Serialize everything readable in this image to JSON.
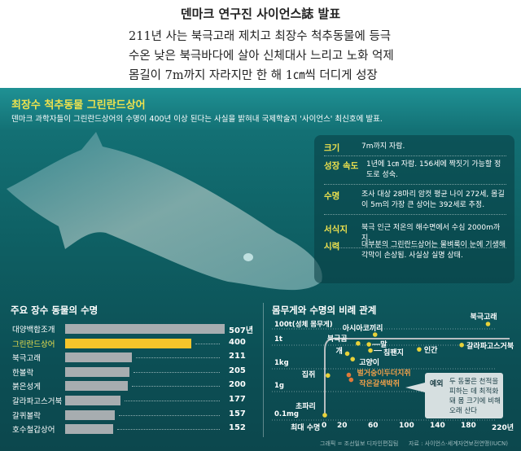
{
  "header": {
    "title": "덴마크 연구진 사이언스誌 발표",
    "subtitles": [
      "211년 사는 북극고래 제치고 최장수 척추동물에 등극",
      "수온 낮은 북극바다에 살아 신체대사 느리고 노화 억제",
      "몸길이 7m까지 자라지만 한 해 1㎝씩 더디게 성장"
    ]
  },
  "panel": {
    "title": "최장수 척추동물 그린란드상어",
    "description": "덴마크 과학자들이 그린란드상어의 수명이 400년 이상 된다는 사실을 밝혀내 국제학술지 '사이언스' 최신호에 발표.",
    "info": [
      {
        "label": "크기",
        "text": "7m까지 자람."
      },
      {
        "label": "성장 속도",
        "text": "1년에 1㎝ 자람. 156세에 짝짓기 가능할 정도로 성숙."
      },
      {
        "label": "수명",
        "text": "조사 대상 28마리 암컷 평균 나이 272세, 몸길이 5m의 가장 큰 상어는 392세로 추정."
      },
      {
        "label": "서식지",
        "text": "북극 인근 저온의 해수면에서 수심 2000m까지."
      },
      {
        "label": "시력",
        "text": "대부분의 그린란드상어는 물벼룩이 눈에 기생해  각막이 손상됨. 사실상 실명 상태."
      }
    ]
  },
  "colors": {
    "highlight": "#f5c52b",
    "bar": "#a7adb0",
    "title_yellow": "#eee24e",
    "dot_yellow": "#e8d23a",
    "dot_orange": "#e07a3a",
    "panel": "#0e5e62"
  },
  "chart_data": [
    {
      "type": "bar",
      "orientation": "horizontal",
      "title": "주요 장수 동물의 수명",
      "categories": [
        "대양백합조개",
        "그린란드상어",
        "북극고래",
        "한볼락",
        "붉은성게",
        "갈라파고스거북",
        "갈퀴볼락",
        "호수철갑상어"
      ],
      "values": [
        507,
        400,
        211,
        205,
        200,
        177,
        157,
        152
      ],
      "value_labels": [
        "507년",
        "400",
        "211",
        "205",
        "200",
        "177",
        "157",
        "152"
      ],
      "highlight": "그린란드상어"
    },
    {
      "type": "scatter",
      "title": "몸무게와 수명의 비례 관계",
      "ylabel": "100t(성체 몸무게)",
      "xlabel": "최대 수명",
      "y_scale": "log",
      "y_ticks": [
        "100t",
        "1t",
        "1kg",
        "1g",
        "0.1mg"
      ],
      "x_ticks": [
        "0",
        "20",
        "60",
        "100",
        "140",
        "180",
        "220년"
      ],
      "x_tick_values": [
        0,
        20,
        60,
        100,
        140,
        180,
        220
      ],
      "points": [
        {
          "name": "북극고래",
          "x": 211,
          "y": "100t",
          "color": "yellow"
        },
        {
          "name": "아시아코끼리",
          "x": 65,
          "y": "5t",
          "color": "yellow"
        },
        {
          "name": "북극곰",
          "x": 43,
          "y": "400kg",
          "color": "yellow"
        },
        {
          "name": "말",
          "x": 57,
          "y": "300kg",
          "color": "yellow"
        },
        {
          "name": "갈라파고스거북",
          "x": 177,
          "y": "250kg",
          "color": "yellow"
        },
        {
          "name": "인간",
          "x": 122,
          "y": "70kg",
          "color": "yellow"
        },
        {
          "name": "침팬지",
          "x": 59,
          "y": "50kg",
          "color": "yellow"
        },
        {
          "name": "개",
          "x": 29,
          "y": "20kg",
          "color": "yellow"
        },
        {
          "name": "고양이",
          "x": 36,
          "y": "4kg",
          "color": "yellow"
        },
        {
          "name": "집쥐",
          "x": 4,
          "y": "30g",
          "color": "yellow"
        },
        {
          "name": "벌거숭이두더지쥐",
          "x": 31,
          "y": "35g",
          "color": "orange"
        },
        {
          "name": "작은갈색박쥐",
          "x": 34,
          "y": "8g",
          "color": "orange"
        },
        {
          "name": "초파리",
          "x": 0,
          "y": "0.1mg",
          "color": "yellow"
        }
      ],
      "callout": {
        "tag": "예외",
        "text": "두 동물은 천적을 피하는 데 최적화 돼 몸 크기에 비해 오래 산다"
      }
    }
  ],
  "credits": {
    "graphic": "그래픽 = 조선일보 디자인편집팀",
    "source": "자료 : 사이언스·세계자연보전연맹(IUCN)"
  }
}
